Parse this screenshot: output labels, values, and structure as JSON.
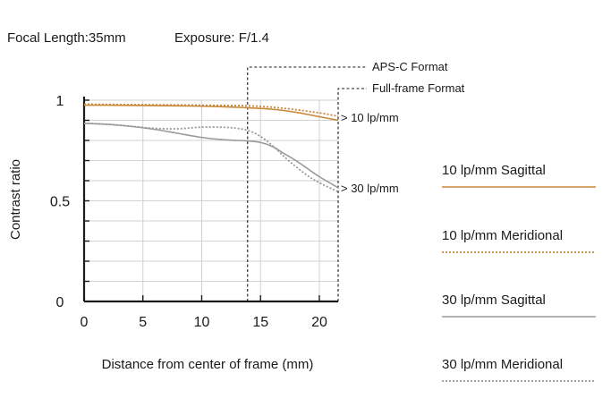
{
  "header": {
    "focal_length": "Focal Length:35mm",
    "exposure": "Exposure: F/1.4"
  },
  "chart_data": {
    "type": "line",
    "title": "",
    "xlabel": "Distance from center of frame (mm)",
    "ylabel": "Contrast ratio",
    "xlim": [
      0,
      21.6
    ],
    "ylim": [
      0,
      1
    ],
    "x_ticks": [
      {
        "value": 0,
        "label": "0"
      },
      {
        "value": 5,
        "label": "5"
      },
      {
        "value": 10,
        "label": "10"
      },
      {
        "value": 15,
        "label": "15"
      },
      {
        "value": 20,
        "label": "20"
      }
    ],
    "y_ticks": [
      {
        "value": 0,
        "label": "0"
      },
      {
        "value": 0.5,
        "label": "0.5"
      },
      {
        "value": 1,
        "label": "1"
      }
    ],
    "grid": true,
    "legend_position": "right",
    "markers": [
      {
        "x": 13.9,
        "label": "APS-C Format"
      },
      {
        "x": 21.6,
        "label": "Full-frame Format"
      }
    ],
    "annotations": [
      {
        "label": "> 10 lp/mm",
        "x": 21.6,
        "y": 0.915
      },
      {
        "label": "> 30 lp/mm",
        "x": 21.6,
        "y": 0.565
      }
    ],
    "series": [
      {
        "name": "10 lp/mm Sagittal",
        "color": "#c8873a",
        "dash": "solid",
        "x": [
          0,
          2,
          4,
          6,
          8,
          10,
          12,
          14,
          16,
          18,
          20,
          21.6
        ],
        "y": [
          0.975,
          0.975,
          0.974,
          0.973,
          0.972,
          0.97,
          0.967,
          0.962,
          0.955,
          0.94,
          0.918,
          0.9
        ]
      },
      {
        "name": "10 lp/mm Meridional",
        "color": "#c8873a",
        "dash": "dotted",
        "x": [
          0,
          2,
          4,
          6,
          8,
          10,
          12,
          14,
          16,
          18,
          20,
          21.6
        ],
        "y": [
          0.98,
          0.979,
          0.978,
          0.977,
          0.976,
          0.975,
          0.974,
          0.972,
          0.965,
          0.953,
          0.937,
          0.92
        ]
      },
      {
        "name": "30 lp/mm Sagittal",
        "color": "#9a9a9a",
        "dash": "solid",
        "x": [
          0,
          2,
          4,
          6,
          8,
          10,
          12,
          14,
          15,
          16,
          17,
          18,
          19,
          20,
          21.6
        ],
        "y": [
          0.885,
          0.88,
          0.87,
          0.855,
          0.835,
          0.815,
          0.803,
          0.797,
          0.79,
          0.77,
          0.735,
          0.7,
          0.66,
          0.62,
          0.565
        ]
      },
      {
        "name": "30 lp/mm Meridional",
        "color": "#9a9a9a",
        "dash": "dotted",
        "x": [
          0,
          2,
          4,
          6,
          8,
          10,
          12,
          13,
          14,
          15,
          16,
          17,
          18,
          19,
          20,
          21.6
        ],
        "y": [
          0.885,
          0.88,
          0.87,
          0.86,
          0.858,
          0.866,
          0.865,
          0.86,
          0.848,
          0.82,
          0.775,
          0.72,
          0.67,
          0.625,
          0.59,
          0.545
        ]
      }
    ]
  }
}
